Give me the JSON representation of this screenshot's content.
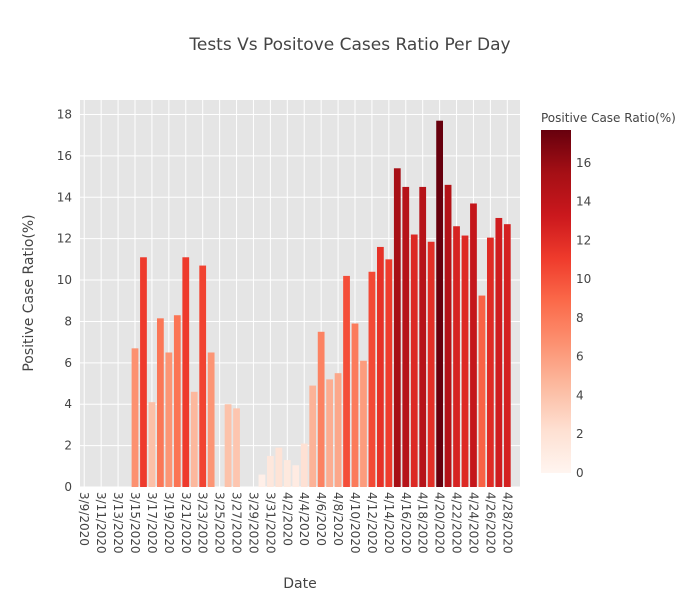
{
  "chart_data": {
    "type": "bar",
    "title": "Tests Vs Positove Cases Ratio Per Day",
    "xlabel": "Date",
    "ylabel": "Positive Case Ratio(%)",
    "ylim": [
      0,
      18.7
    ],
    "yticks": [
      0,
      2,
      4,
      6,
      8,
      10,
      12,
      14,
      16,
      18
    ],
    "grid": true,
    "x_tick_labels": [
      "3/9/2020",
      "3/11/2020",
      "3/13/2020",
      "3/15/2020",
      "3/17/2020",
      "3/19/2020",
      "3/21/2020",
      "3/23/2020",
      "3/25/2020",
      "3/27/2020",
      "3/29/2020",
      "3/31/2020",
      "4/2/2020",
      "4/4/2020",
      "4/6/2020",
      "4/8/2020",
      "4/10/2020",
      "4/12/2020",
      "4/14/2020",
      "4/16/2020",
      "4/18/2020",
      "4/20/2020",
      "4/22/2020",
      "4/24/2020",
      "4/26/2020",
      "4/28/2020"
    ],
    "categories": [
      "3/9/2020",
      "3/10/2020",
      "3/11/2020",
      "3/12/2020",
      "3/13/2020",
      "3/14/2020",
      "3/15/2020",
      "3/16/2020",
      "3/17/2020",
      "3/18/2020",
      "3/19/2020",
      "3/20/2020",
      "3/21/2020",
      "3/22/2020",
      "3/23/2020",
      "3/24/2020",
      "3/25/2020",
      "3/26/2020",
      "3/27/2020",
      "3/28/2020",
      "3/29/2020",
      "3/30/2020",
      "3/31/2020",
      "4/1/2020",
      "4/2/2020",
      "4/3/2020",
      "4/4/2020",
      "4/5/2020",
      "4/6/2020",
      "4/7/2020",
      "4/8/2020",
      "4/9/2020",
      "4/10/2020",
      "4/11/2020",
      "4/12/2020",
      "4/13/2020",
      "4/14/2020",
      "4/15/2020",
      "4/16/2020",
      "4/17/2020",
      "4/18/2020",
      "4/19/2020",
      "4/20/2020",
      "4/21/2020",
      "4/22/2020",
      "4/23/2020",
      "4/24/2020",
      "4/25/2020",
      "4/26/2020",
      "4/27/2020",
      "4/28/2020",
      "4/29/2020"
    ],
    "values": [
      0,
      0,
      0,
      0,
      0,
      0,
      6.7,
      11.1,
      4.1,
      8.15,
      6.5,
      8.3,
      11.1,
      4.6,
      10.7,
      6.5,
      0,
      4.0,
      3.8,
      0,
      0,
      0.6,
      1.5,
      1.9,
      1.3,
      1.05,
      2.1,
      4.9,
      7.5,
      5.2,
      5.5,
      10.2,
      7.9,
      6.1,
      10.4,
      11.6,
      11.0,
      15.4,
      14.5,
      12.2,
      14.5,
      11.85,
      17.7,
      14.6,
      12.6,
      12.15,
      13.7,
      9.25,
      12.05,
      13.0,
      12.7,
      0
    ],
    "colorbar": {
      "title": "Positive Case Ratio(%)",
      "range": [
        0,
        17.7
      ],
      "ticks": [
        0,
        2,
        4,
        6,
        8,
        10,
        12,
        14,
        16
      ],
      "colorscale": [
        "#fff5f0",
        "#fee0d2",
        "#fcbba1",
        "#fc9272",
        "#fb6a4a",
        "#ef3b2c",
        "#cb181d",
        "#a50f15",
        "#67000d"
      ]
    },
    "plot_bgcolor": "#e5e5e5",
    "grid_color": "#ffffff"
  }
}
